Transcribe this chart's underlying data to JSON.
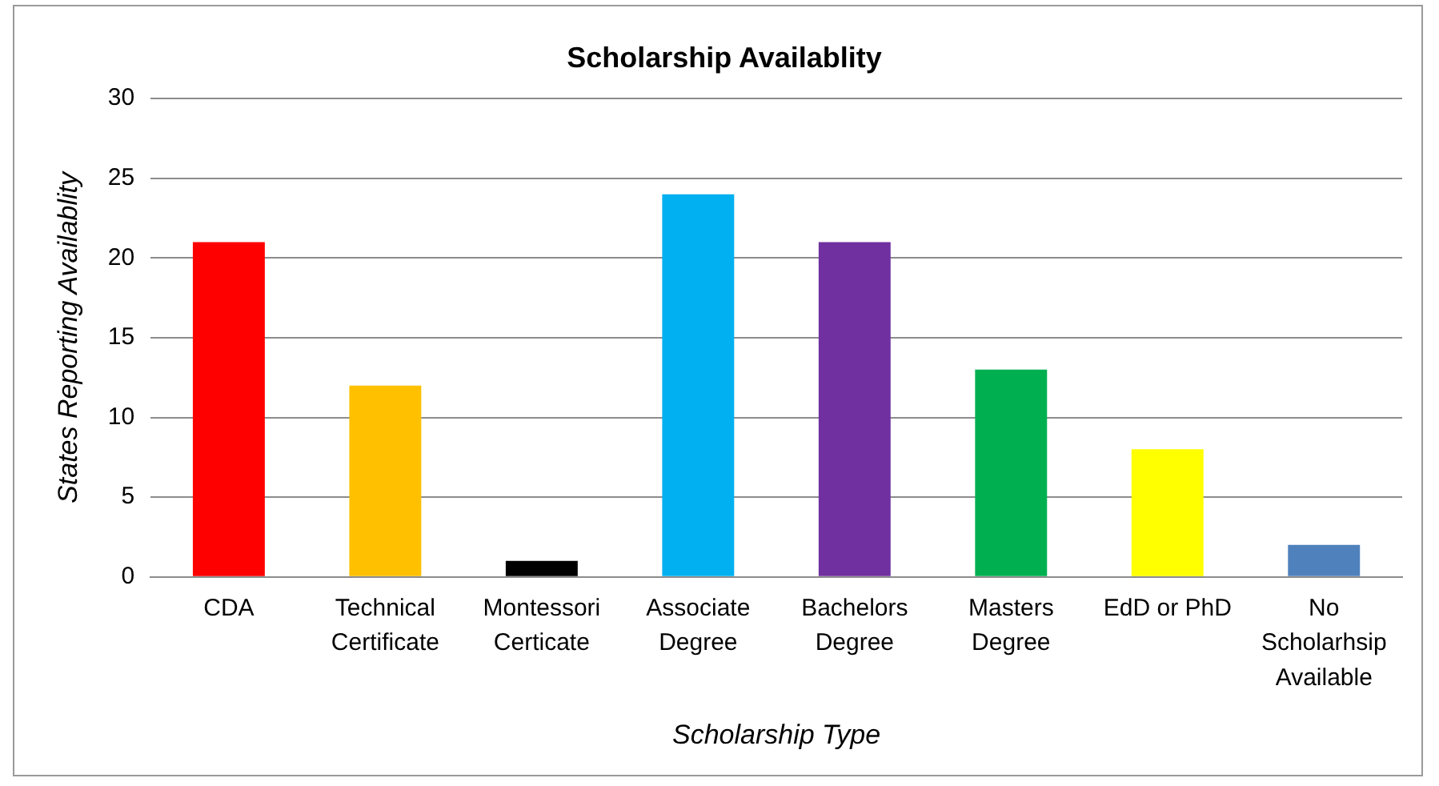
{
  "chart_data": {
    "type": "bar",
    "title": "Scholarship Availablity",
    "xlabel": "Scholarship Type",
    "ylabel": "States Reporting Availablity",
    "categories": [
      "CDA",
      "Technical Certificate",
      "Montessori Certicate",
      "Associate Degree",
      "Bachelors Degree",
      "Masters Degree",
      "EdD or PhD",
      "No Scholarhsip Available"
    ],
    "values": [
      21,
      12,
      1,
      24,
      21,
      13,
      8,
      2
    ],
    "colors": [
      "#ff0000",
      "#ffc000",
      "#000000",
      "#00b0f0",
      "#7030a0",
      "#00b050",
      "#ffff00",
      "#4f81bd"
    ],
    "ylim": [
      0,
      30
    ],
    "yticks": [
      0,
      5,
      10,
      15,
      20,
      25,
      30
    ],
    "grid": "y",
    "legend": false
  }
}
